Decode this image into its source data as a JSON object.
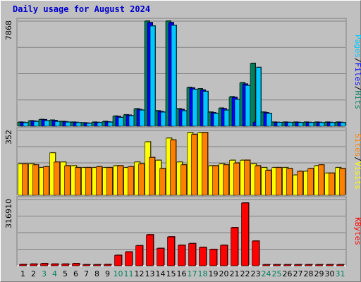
{
  "chart_data": {
    "title": "Daily usage for August 2024",
    "type": "bar",
    "categories": [
      "1",
      "2",
      "3",
      "4",
      "5",
      "6",
      "7",
      "8",
      "9",
      "10",
      "11",
      "12",
      "13",
      "14",
      "15",
      "16",
      "17",
      "18",
      "19",
      "20",
      "21",
      "22",
      "23",
      "24",
      "25",
      "26",
      "27",
      "28",
      "29",
      "30",
      "31"
    ],
    "weekend_days": [
      "3",
      "4",
      "10",
      "11",
      "17",
      "18",
      "24",
      "25",
      "31"
    ],
    "panels": [
      {
        "id": "hits",
        "ymax_label": "7868",
        "ylim": [
          0,
          7868
        ],
        "series": [
          {
            "name": "Hits",
            "color": "#00805c",
            "values": [
              300,
              400,
              500,
              450,
              350,
              300,
              250,
              300,
              350,
              750,
              850,
              1300,
              7868,
              1150,
              7868,
              1300,
              2900,
              2800,
              1050,
              1350,
              2200,
              3250,
              4700,
              1050,
              300,
              300,
              300,
              300,
              300,
              300,
              300
            ]
          },
          {
            "name": "Files",
            "color": "#0000ff",
            "values": [
              280,
              380,
              480,
              420,
              330,
              280,
              230,
              280,
              320,
              720,
              820,
              1250,
              7750,
              1100,
              7750,
              1250,
              2850,
              2700,
              1000,
              1300,
              2150,
              3150,
              300,
              1000,
              280,
              280,
              280,
              280,
              280,
              280,
              280
            ]
          },
          {
            "name": "Pages",
            "color": "#00c8ff",
            "values": [
              260,
              350,
              400,
              350,
              300,
              260,
              210,
              260,
              300,
              650,
              780,
              1200,
              7500,
              1050,
              7550,
              1150,
              2750,
              2600,
              950,
              1200,
              2000,
              3050,
              4400,
              950,
              270,
              270,
              260,
              260,
              260,
              260,
              260
            ]
          }
        ],
        "legend": [
          {
            "text": "Pages",
            "color": "#00c8ff"
          },
          {
            "text": "/",
            "color": "#000000"
          },
          {
            "text": "Files",
            "color": "#0000ff"
          },
          {
            "text": "/",
            "color": "#000000"
          },
          {
            "text": "Hits",
            "color": "#00805c"
          }
        ]
      },
      {
        "id": "visits",
        "ymax_label": "352",
        "ylim": [
          0,
          352
        ],
        "series": [
          {
            "name": "Visits",
            "color": "#ffff00",
            "values": [
              170,
              170,
              150,
              230,
              180,
              160,
              150,
              150,
              150,
              160,
              150,
              180,
              290,
              190,
              310,
              180,
              340,
              340,
              160,
              170,
              190,
              190,
              170,
              150,
              150,
              150,
              110,
              130,
              160,
              120,
              150
            ]
          },
          {
            "name": "Sites",
            "color": "#ff8000",
            "values": [
              170,
              165,
              155,
              180,
              160,
              150,
              150,
              155,
              150,
              160,
              155,
              170,
              205,
              145,
              300,
              165,
              330,
              340,
              160,
              165,
              175,
              190,
              160,
              135,
              150,
              145,
              130,
              145,
              165,
              120,
              145
            ]
          }
        ],
        "legend": [
          {
            "text": "Sites",
            "color": "#ff8000"
          },
          {
            "text": "/",
            "color": "#000000"
          },
          {
            "text": "Visits",
            "color": "#ffff00"
          }
        ]
      },
      {
        "id": "kbytes",
        "ymax_label": "316910",
        "ylim": [
          0,
          316910
        ],
        "series": [
          {
            "name": "KBytes",
            "color": "#ff0000",
            "values": [
              6000,
              8000,
              10000,
              8000,
              8000,
              10000,
              5000,
              5000,
              6000,
              50000,
              66000,
              96000,
              148000,
              83000,
              138000,
              98000,
              106000,
              88000,
              78000,
              98000,
              182000,
              300000,
              118000,
              5000,
              5000,
              5000,
              5000,
              5000,
              5000,
              5000,
              5000
            ]
          }
        ],
        "legend": [
          {
            "text": "KBytes",
            "color": "#ff0000"
          }
        ]
      }
    ],
    "colors": {
      "background": "#c0c0c0",
      "gridline": "#808080",
      "weekday_label": "#000000",
      "weekend_label": "#00805c",
      "title": "#0000cc"
    }
  }
}
